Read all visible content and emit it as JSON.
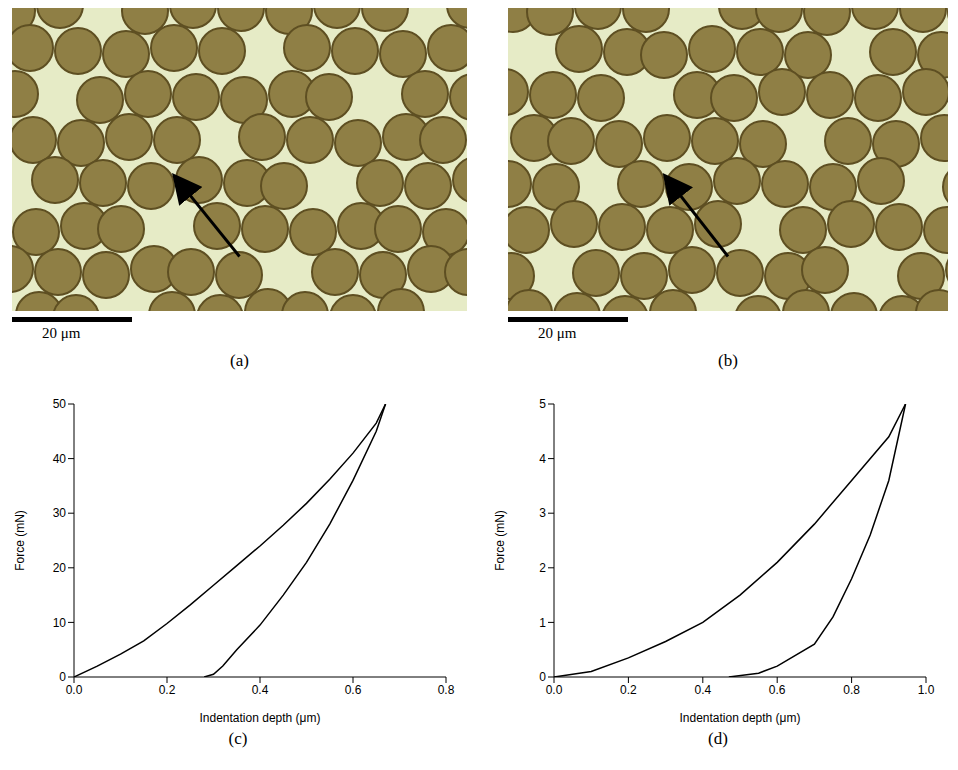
{
  "images": [
    {
      "label": "(a)",
      "scale_bar": "20 μm"
    },
    {
      "label": "(b)",
      "scale_bar": "20 μm"
    }
  ],
  "chart_data": [
    {
      "type": "line",
      "title": "(c)",
      "x_label": "Indentation depth (μm)",
      "y_label": "Force (mN)",
      "xlim": [
        0,
        0.8
      ],
      "xticks": [
        {
          "value": 0,
          "label": "0.0"
        },
        0.2,
        0.4,
        0.6,
        0.8
      ],
      "ylim": [
        0,
        50
      ],
      "yticks": [
        0,
        10,
        20,
        30,
        40,
        50
      ],
      "series": [
        {
          "color": "#000000",
          "x": [
            0,
            0.05,
            0.1,
            0.15,
            0.2,
            0.25,
            0.3,
            0.35,
            0.4,
            0.45,
            0.5,
            0.55,
            0.6,
            0.65,
            0.67
          ],
          "values": [
            0,
            2,
            4.2,
            6.6,
            9.8,
            13.2,
            16.8,
            20.4,
            24,
            27.8,
            31.8,
            36.2,
            41,
            46.5,
            50
          ]
        },
        {
          "color": "#000000",
          "x": [
            0.67,
            0.65,
            0.6,
            0.55,
            0.5,
            0.45,
            0.4,
            0.35,
            0.32,
            0.3,
            0.28
          ],
          "values": [
            50,
            45,
            36,
            28,
            21,
            15,
            9.5,
            5,
            2,
            0.5,
            0
          ]
        }
      ]
    },
    {
      "type": "line",
      "title": "(d)",
      "x_label": "Indentation depth (μm)",
      "y_label": "Force (mN)",
      "xlim": [
        0,
        1
      ],
      "xticks": [
        {
          "value": 0,
          "label": "0.0"
        },
        0.2,
        0.4,
        0.6,
        0.8,
        {
          "value": 1,
          "label": "1.0"
        }
      ],
      "ylim": [
        0,
        5
      ],
      "yticks": [
        0,
        1,
        2,
        3,
        4,
        5
      ],
      "series": [
        {
          "color": "#000000",
          "x": [
            0,
            0.1,
            0.2,
            0.3,
            0.4,
            0.5,
            0.6,
            0.7,
            0.8,
            0.9,
            0.945
          ],
          "values": [
            0,
            0.1,
            0.35,
            0.65,
            1,
            1.5,
            2.1,
            2.8,
            3.6,
            4.4,
            5
          ]
        },
        {
          "color": "#000000",
          "x": [
            0.945,
            0.9,
            0.85,
            0.8,
            0.75,
            0.7,
            0.6,
            0.55,
            0.47
          ],
          "values": [
            5,
            3.6,
            2.6,
            1.8,
            1.1,
            0.6,
            0.2,
            0.07,
            0
          ]
        }
      ]
    }
  ]
}
